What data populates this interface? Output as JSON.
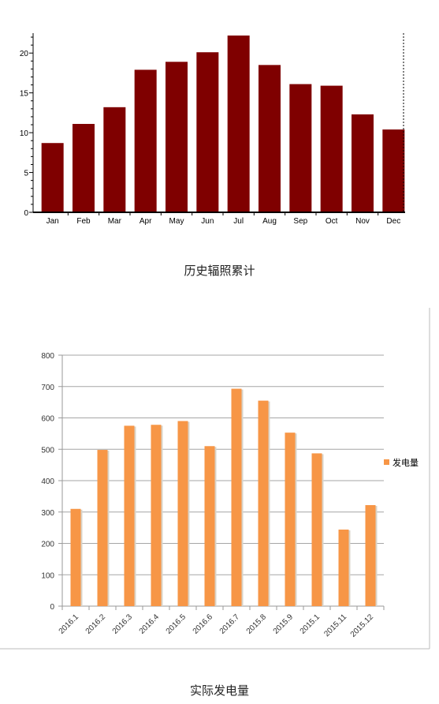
{
  "chart_data": [
    {
      "type": "bar",
      "categories": [
        "Jan",
        "Feb",
        "Mar",
        "Apr",
        "May",
        "Jun",
        "Jul",
        "Aug",
        "Sep",
        "Oct",
        "Nov",
        "Dec"
      ],
      "values": [
        8.7,
        11.1,
        13.2,
        17.9,
        18.9,
        20.1,
        22.2,
        18.5,
        16.1,
        15.9,
        12.3,
        10.4
      ],
      "ylim": [
        0,
        22.5
      ],
      "yticks": [
        0,
        5,
        10,
        15,
        20
      ],
      "bar_color": "#7f0000",
      "caption": "历史辐照累计"
    },
    {
      "type": "bar",
      "categories": [
        "2016.1",
        "2016.2",
        "2016.3",
        "2016.4",
        "2016.5",
        "2016.6",
        "2016.7",
        "2015.8",
        "2015.9",
        "2015.1",
        "2015.11",
        "2015.12"
      ],
      "series": [
        {
          "name": "发电量",
          "values": [
            310,
            498,
            575,
            578,
            590,
            510,
            693,
            655,
            553,
            487,
            244,
            322
          ]
        }
      ],
      "ylim": [
        0,
        800
      ],
      "yticks": [
        0,
        100,
        200,
        300,
        400,
        500,
        600,
        700,
        800
      ],
      "grid": true,
      "legend": "right",
      "bar_color": "#f79646",
      "caption": "实际发电量"
    }
  ]
}
